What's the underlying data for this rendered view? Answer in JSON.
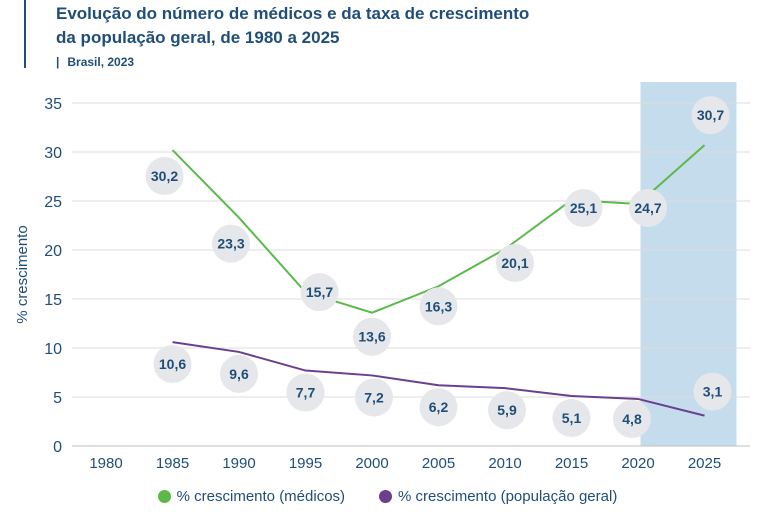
{
  "header": {
    "title_line1": "Evolução do número de médicos e da taxa de crescimento",
    "title_line2": "da população geral, de 1980 a 2025",
    "subtitle_sep": "|",
    "subtitle": "Brasil, 2023"
  },
  "colors": {
    "title": "#1f4e79",
    "medicos": "#5bb94a",
    "populacao": "#6b3f8e",
    "highlight": "#c5dcec",
    "bubble": "#e6e7ea",
    "grid": "#dddddd"
  },
  "chart_data": {
    "type": "line",
    "title": "Evolução do número de médicos e da taxa de crescimento da população geral, de 1980 a 2025",
    "xlabel": "",
    "ylabel": "% crescimento",
    "categories": [
      "1980",
      "1985",
      "1990",
      "1995",
      "2000",
      "2005",
      "2010",
      "2015",
      "2020",
      "2025"
    ],
    "ylim": [
      0,
      35
    ],
    "yticks": [
      "0",
      "5",
      "10",
      "15",
      "20",
      "25",
      "30",
      "35"
    ],
    "grid": true,
    "legend_position": "bottom",
    "highlighted_category": "2025",
    "series": [
      {
        "name": "% crescimento (médicos)",
        "x": [
          "1985",
          "1990",
          "1995",
          "2000",
          "2005",
          "2010",
          "2015",
          "2020",
          "2025"
        ],
        "values": [
          30.2,
          23.3,
          15.7,
          13.6,
          16.3,
          20.1,
          25.1,
          24.7,
          30.7
        ],
        "labels": [
          "30,2",
          "23,3",
          "15,7",
          "13,6",
          "16,3",
          "20,1",
          "25,1",
          "24,7",
          "30,7"
        ]
      },
      {
        "name": "% crescimento (população geral)",
        "x": [
          "1985",
          "1990",
          "1995",
          "2000",
          "2005",
          "2010",
          "2015",
          "2020",
          "2025"
        ],
        "values": [
          10.6,
          9.6,
          7.7,
          7.2,
          6.2,
          5.9,
          5.1,
          4.8,
          3.1
        ],
        "labels": [
          "10,6",
          "9,6",
          "7,7",
          "7,2",
          "6,2",
          "5,9",
          "5,1",
          "4,8",
          "3,1"
        ]
      }
    ]
  }
}
